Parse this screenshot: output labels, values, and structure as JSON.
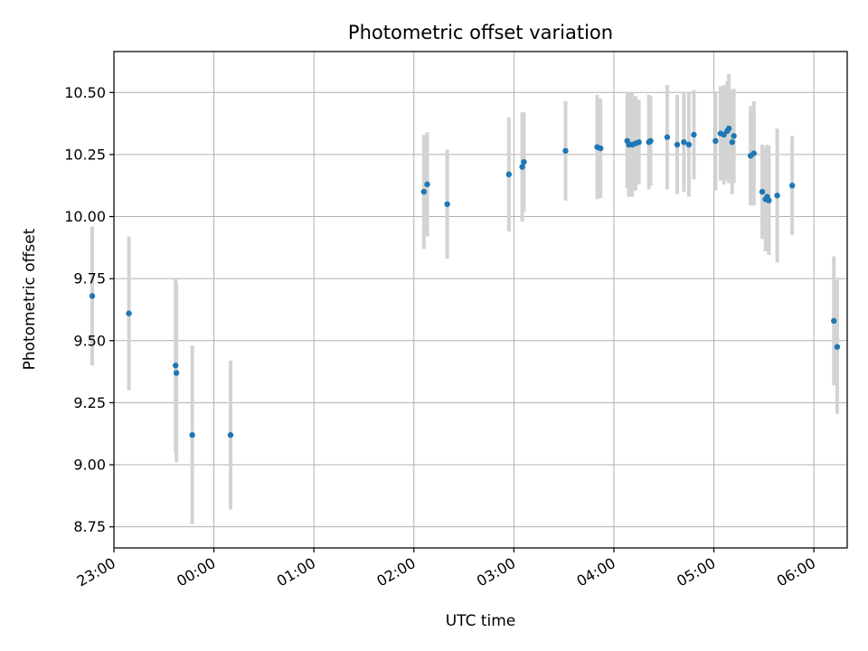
{
  "chart_data": {
    "type": "scatter",
    "title": "Photometric offset variation",
    "xlabel": "UTC time",
    "ylabel": "Photometric offset",
    "grid": true,
    "x_unit": "minutes relative to 00:00 UTC",
    "xlim": [
      -60,
      380
    ],
    "ylim": [
      8.665,
      10.665
    ],
    "xticks": [
      {
        "value": -60,
        "label": "23:00"
      },
      {
        "value": 0,
        "label": "00:00"
      },
      {
        "value": 60,
        "label": "01:00"
      },
      {
        "value": 120,
        "label": "02:00"
      },
      {
        "value": 180,
        "label": "03:00"
      },
      {
        "value": 240,
        "label": "04:00"
      },
      {
        "value": 300,
        "label": "05:00"
      },
      {
        "value": 360,
        "label": "06:00"
      }
    ],
    "yticks": [
      {
        "value": 8.75,
        "label": "8.75"
      },
      {
        "value": 9.0,
        "label": "9.00"
      },
      {
        "value": 9.25,
        "label": "9.25"
      },
      {
        "value": 9.5,
        "label": "9.50"
      },
      {
        "value": 9.75,
        "label": "9.75"
      },
      {
        "value": 10.0,
        "label": "10.00"
      },
      {
        "value": 10.25,
        "label": "10.25"
      },
      {
        "value": 10.5,
        "label": "10.50"
      }
    ],
    "colors": {
      "point": "#1f77b4",
      "errorbar": "#d3d3d3",
      "grid": "#b0b0b0"
    },
    "series": [
      {
        "name": "offset",
        "points": [
          {
            "x": -73,
            "y": 9.68,
            "err": 0.28
          },
          {
            "x": -51,
            "y": 9.61,
            "err": 0.31
          },
          {
            "x": -23,
            "y": 9.4,
            "err": 0.35
          },
          {
            "x": -22.5,
            "y": 9.37,
            "err": 0.36
          },
          {
            "x": -13,
            "y": 9.12,
            "err": 0.36
          },
          {
            "x": 10,
            "y": 9.12,
            "err": 0.3
          },
          {
            "x": 126,
            "y": 10.1,
            "err": 0.23
          },
          {
            "x": 128,
            "y": 10.13,
            "err": 0.21
          },
          {
            "x": 140,
            "y": 10.05,
            "err": 0.22
          },
          {
            "x": 177,
            "y": 10.17,
            "err": 0.23
          },
          {
            "x": 185,
            "y": 10.2,
            "err": 0.22
          },
          {
            "x": 186,
            "y": 10.22,
            "err": 0.2
          },
          {
            "x": 211,
            "y": 10.265,
            "err": 0.2
          },
          {
            "x": 230,
            "y": 10.28,
            "err": 0.21
          },
          {
            "x": 232,
            "y": 10.275,
            "err": 0.2
          },
          {
            "x": 248,
            "y": 10.305,
            "err": 0.19
          },
          {
            "x": 249,
            "y": 10.29,
            "err": 0.21
          },
          {
            "x": 251,
            "y": 10.29,
            "err": 0.21
          },
          {
            "x": 253,
            "y": 10.295,
            "err": 0.19
          },
          {
            "x": 255,
            "y": 10.3,
            "err": 0.17
          },
          {
            "x": 261,
            "y": 10.3,
            "err": 0.19
          },
          {
            "x": 262,
            "y": 10.305,
            "err": 0.18
          },
          {
            "x": 272,
            "y": 10.32,
            "err": 0.21
          },
          {
            "x": 278,
            "y": 10.29,
            "err": 0.2
          },
          {
            "x": 282,
            "y": 10.3,
            "err": 0.2
          },
          {
            "x": 285,
            "y": 10.29,
            "err": 0.21
          },
          {
            "x": 288,
            "y": 10.33,
            "err": 0.18
          },
          {
            "x": 301,
            "y": 10.305,
            "err": 0.2
          },
          {
            "x": 304,
            "y": 10.335,
            "err": 0.19
          },
          {
            "x": 306,
            "y": 10.33,
            "err": 0.2
          },
          {
            "x": 308,
            "y": 10.345,
            "err": 0.2
          },
          {
            "x": 309,
            "y": 10.355,
            "err": 0.22
          },
          {
            "x": 311,
            "y": 10.3,
            "err": 0.21
          },
          {
            "x": 312,
            "y": 10.325,
            "err": 0.19
          },
          {
            "x": 322,
            "y": 10.245,
            "err": 0.2
          },
          {
            "x": 324,
            "y": 10.255,
            "err": 0.21
          },
          {
            "x": 329,
            "y": 10.1,
            "err": 0.19
          },
          {
            "x": 331,
            "y": 10.07,
            "err": 0.21
          },
          {
            "x": 332,
            "y": 10.08,
            "err": 0.21
          },
          {
            "x": 333,
            "y": 10.065,
            "err": 0.22
          },
          {
            "x": 338,
            "y": 10.085,
            "err": 0.27
          },
          {
            "x": 347,
            "y": 10.125,
            "err": 0.2
          },
          {
            "x": 372,
            "y": 9.58,
            "err": 0.26
          },
          {
            "x": 374,
            "y": 9.475,
            "err": 0.27
          }
        ]
      }
    ]
  }
}
